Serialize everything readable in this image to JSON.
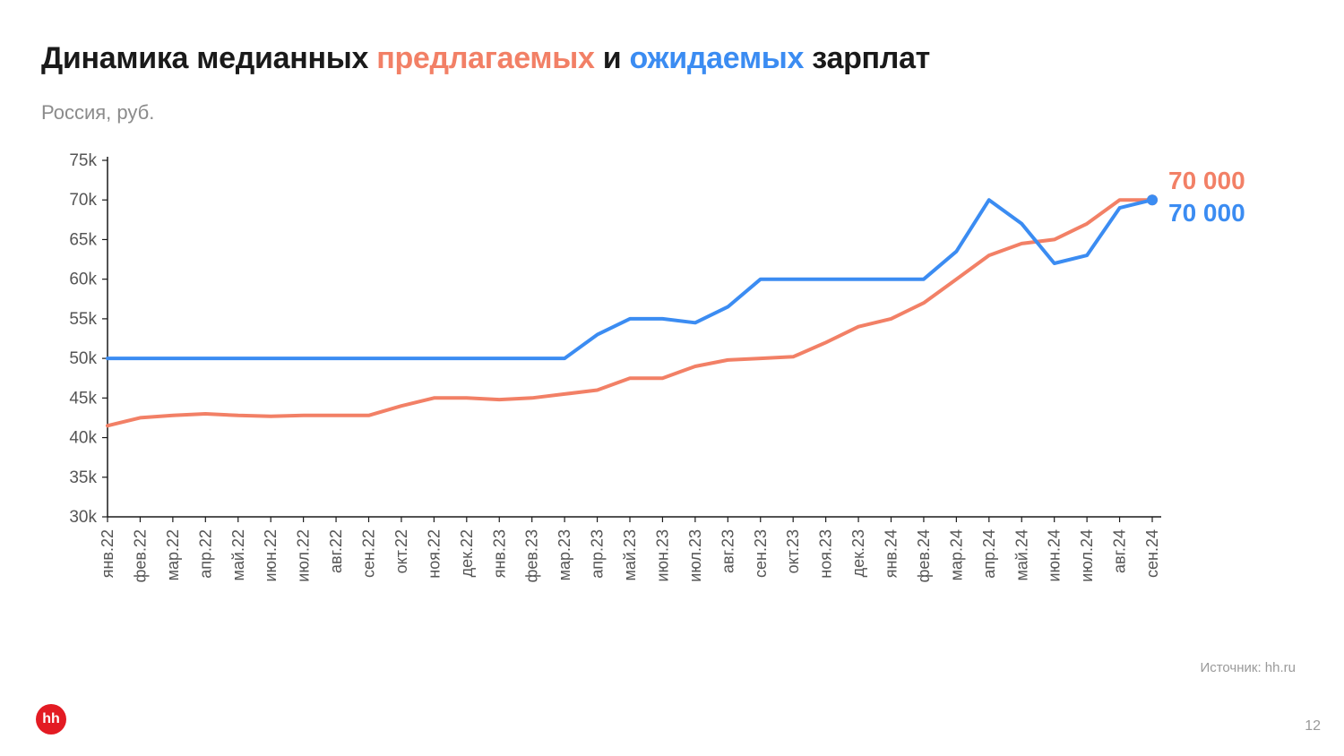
{
  "title": {
    "parts": [
      {
        "text": "Динамика медианных ",
        "color": "#1a1a1a"
      },
      {
        "text": "предлагаемых",
        "color": "#f28066"
      },
      {
        "text": " и ",
        "color": "#1a1a1a"
      },
      {
        "text": "ожидаемых",
        "color": "#3b8cf2"
      },
      {
        "text": " зарплат",
        "color": "#1a1a1a"
      }
    ]
  },
  "subtitle": "Россия, руб.",
  "source": "Источник: hh.ru",
  "page_number": "12",
  "logo": {
    "text": "hh",
    "bg": "#e31b23",
    "fg": "#ffffff"
  },
  "chart": {
    "type": "line",
    "background_color": "#ffffff",
    "axis_color": "#1a1a1a",
    "tick_font_size": 19,
    "x_tick_font_size": 18,
    "line_width": 4,
    "end_marker_radius": 6,
    "ylim": [
      30,
      75
    ],
    "yticks": [
      30,
      35,
      40,
      45,
      50,
      55,
      60,
      65,
      70,
      75
    ],
    "ytick_labels": [
      "30k",
      "35k",
      "40k",
      "45k",
      "50k",
      "55k",
      "60k",
      "65k",
      "70k",
      "75k"
    ],
    "categories": [
      "янв.22",
      "фев.22",
      "мар.22",
      "апр.22",
      "май.22",
      "июн.22",
      "июл.22",
      "авг.22",
      "сен.22",
      "окт.22",
      "ноя.22",
      "дек.22",
      "янв.23",
      "фев.23",
      "мар.23",
      "апр.23",
      "май.23",
      "июн.23",
      "июл.23",
      "авг.23",
      "сен.23",
      "окт.23",
      "ноя.23",
      "дек.23",
      "янв.24",
      "фев.24",
      "мар.24",
      "апр.24",
      "май.24",
      "июн.24",
      "июл.24",
      "авг.24",
      "сен.24"
    ],
    "series": [
      {
        "name": "offered",
        "color": "#f28066",
        "values": [
          41.5,
          42.5,
          42.8,
          43.0,
          42.8,
          42.7,
          42.8,
          42.8,
          42.8,
          44.0,
          45.0,
          45.0,
          44.8,
          45.0,
          45.5,
          46.0,
          47.5,
          47.5,
          49.0,
          49.8,
          50.0,
          50.2,
          52.0,
          54.0,
          55.0,
          57.0,
          60.0,
          63.0,
          64.5,
          65.0,
          67.0,
          70.0,
          70.0
        ],
        "end_label": "70 000",
        "end_label_offset_y": -22
      },
      {
        "name": "expected",
        "color": "#3b8cf2",
        "values": [
          50,
          50,
          50,
          50,
          50,
          50,
          50,
          50,
          50,
          50,
          50,
          50,
          50,
          50,
          50,
          53,
          55,
          55,
          54.5,
          56.5,
          60,
          60,
          60,
          60,
          60,
          60,
          63.5,
          70,
          67,
          62,
          63,
          69,
          70
        ],
        "end_label": "70 000",
        "end_label_offset_y": 14
      }
    ],
    "end_label_font_size": 28
  }
}
